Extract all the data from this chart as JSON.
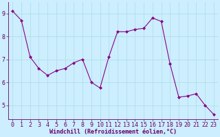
{
  "x": [
    0,
    1,
    2,
    3,
    4,
    5,
    6,
    7,
    8,
    9,
    10,
    11,
    12,
    13,
    14,
    15,
    16,
    17,
    18,
    19,
    20,
    21,
    22,
    23
  ],
  "y": [
    9.1,
    8.7,
    7.1,
    6.6,
    6.3,
    6.5,
    6.6,
    6.85,
    7.0,
    6.0,
    5.75,
    7.1,
    8.2,
    8.2,
    8.3,
    8.35,
    8.8,
    8.65,
    6.8,
    5.35,
    5.4,
    5.5,
    5.0,
    4.6
  ],
  "line_color": "#880088",
  "marker": "D",
  "marker_size": 2.0,
  "bg_color": "#cceeff",
  "grid_color": "#aadddd",
  "xlabel": "Windchill (Refroidissement éolien,°C)",
  "xlabel_color": "#660066",
  "tick_color": "#660066",
  "axis_label_color": "#660066",
  "ylim": [
    4.4,
    9.5
  ],
  "xlim": [
    -0.5,
    23.5
  ],
  "yticks": [
    5,
    6,
    7,
    8,
    9
  ],
  "xticks": [
    0,
    1,
    2,
    3,
    4,
    5,
    6,
    7,
    8,
    9,
    10,
    11,
    12,
    13,
    14,
    15,
    16,
    17,
    18,
    19,
    20,
    21,
    22,
    23
  ],
  "tick_fontsize": 6.0,
  "xlabel_fontsize": 6.0,
  "spine_color": "#660066",
  "linewidth": 0.8
}
